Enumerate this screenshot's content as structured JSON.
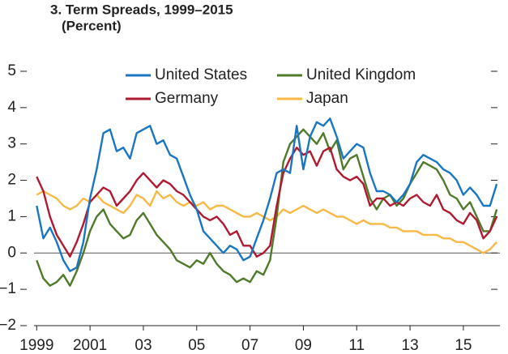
{
  "chart_data": {
    "type": "line",
    "title": "3. Term Spreads, 1999–2015",
    "subtitle": "(Percent)",
    "x": [
      1999,
      1999.25,
      1999.5,
      1999.75,
      2000,
      2000.25,
      2000.5,
      2000.75,
      2001,
      2001.25,
      2001.5,
      2001.75,
      2002,
      2002.25,
      2002.5,
      2002.75,
      2003,
      2003.25,
      2003.5,
      2003.75,
      2004,
      2004.25,
      2004.5,
      2004.75,
      2005,
      2005.25,
      2005.5,
      2005.75,
      2006,
      2006.25,
      2006.5,
      2006.75,
      2007,
      2007.25,
      2007.5,
      2007.75,
      2008,
      2008.25,
      2008.5,
      2008.75,
      2009,
      2009.25,
      2009.5,
      2009.75,
      2010,
      2010.25,
      2010.5,
      2010.75,
      2011,
      2011.25,
      2011.5,
      2011.75,
      2012,
      2012.25,
      2012.5,
      2012.75,
      2013,
      2013.25,
      2013.5,
      2013.75,
      2014,
      2014.25,
      2014.5,
      2014.75,
      2015,
      2015.25,
      2015.5,
      2015.75,
      2016,
      2016.25
    ],
    "series": [
      {
        "name": "United States",
        "color": "#1a75c2",
        "values": [
          1.3,
          0.4,
          0.7,
          0.3,
          -0.2,
          -0.5,
          -0.4,
          0.3,
          1.5,
          2.3,
          3.3,
          3.4,
          2.8,
          2.9,
          2.6,
          3.3,
          3.4,
          3.5,
          3.0,
          3.1,
          2.7,
          2.6,
          2.1,
          1.6,
          1.2,
          0.6,
          0.4,
          0.2,
          0.0,
          0.2,
          0.1,
          -0.2,
          -0.1,
          0.4,
          0.9,
          1.5,
          2.2,
          2.3,
          2.2,
          3.5,
          2.3,
          3.2,
          3.6,
          3.5,
          3.7,
          3.2,
          2.6,
          2.8,
          3.0,
          2.9,
          2.2,
          1.7,
          1.7,
          1.6,
          1.4,
          1.6,
          1.9,
          2.5,
          2.7,
          2.6,
          2.5,
          2.3,
          2.2,
          2.0,
          1.6,
          1.8,
          1.6,
          1.3,
          1.3,
          1.9
        ]
      },
      {
        "name": "United Kingdom",
        "color": "#4f7a2a",
        "values": [
          -0.2,
          -0.7,
          -0.9,
          -0.8,
          -0.6,
          -0.9,
          -0.5,
          0.0,
          0.6,
          1.0,
          1.2,
          0.8,
          0.6,
          0.4,
          0.5,
          0.9,
          1.1,
          0.8,
          0.5,
          0.3,
          0.1,
          -0.2,
          -0.3,
          -0.4,
          -0.2,
          -0.3,
          0.0,
          -0.3,
          -0.5,
          -0.6,
          -0.8,
          -0.7,
          -0.8,
          -0.5,
          -0.6,
          -0.2,
          1.0,
          2.5,
          3.0,
          3.2,
          3.4,
          3.2,
          3.0,
          3.3,
          2.8,
          3.1,
          2.3,
          2.6,
          2.7,
          2.1,
          1.5,
          1.2,
          1.5,
          1.6,
          1.3,
          1.5,
          1.9,
          2.2,
          2.5,
          2.4,
          2.3,
          2.0,
          1.6,
          1.5,
          1.2,
          1.4,
          1.0,
          0.6,
          0.6,
          1.2
        ]
      },
      {
        "name": "Germany",
        "color": "#b01a30",
        "values": [
          2.1,
          1.7,
          1.0,
          0.5,
          0.2,
          -0.1,
          0.3,
          0.8,
          1.4,
          1.6,
          1.8,
          1.7,
          1.3,
          1.5,
          1.7,
          2.0,
          2.2,
          2.0,
          1.8,
          2.0,
          1.9,
          1.7,
          1.6,
          1.4,
          1.2,
          1.0,
          0.9,
          1.0,
          0.8,
          0.5,
          0.6,
          0.2,
          0.2,
          -0.1,
          0.0,
          0.2,
          1.3,
          2.2,
          2.6,
          2.9,
          2.7,
          2.8,
          2.4,
          2.8,
          2.9,
          2.3,
          2.1,
          2.0,
          2.1,
          1.9,
          1.3,
          1.5,
          1.5,
          1.3,
          1.4,
          1.3,
          1.5,
          1.6,
          1.4,
          1.3,
          1.6,
          1.2,
          1.1,
          0.9,
          0.8,
          1.1,
          0.9,
          0.4,
          0.6,
          1.0
        ]
      },
      {
        "name": "Japan",
        "color": "#f7b844",
        "values": [
          1.6,
          1.7,
          1.6,
          1.5,
          1.3,
          1.2,
          1.3,
          1.5,
          1.4,
          1.6,
          1.4,
          1.3,
          1.2,
          1.1,
          1.3,
          1.6,
          1.5,
          1.3,
          1.7,
          1.5,
          1.6,
          1.4,
          1.3,
          1.4,
          1.3,
          1.4,
          1.2,
          1.3,
          1.3,
          1.2,
          1.1,
          1.0,
          1.0,
          1.1,
          1.0,
          0.9,
          1.0,
          1.2,
          1.1,
          1.2,
          1.3,
          1.2,
          1.1,
          1.2,
          1.1,
          1.0,
          1.0,
          0.9,
          0.8,
          0.9,
          0.8,
          0.8,
          0.8,
          0.7,
          0.7,
          0.6,
          0.6,
          0.6,
          0.5,
          0.5,
          0.5,
          0.4,
          0.4,
          0.3,
          0.3,
          0.2,
          0.1,
          0.0,
          0.1,
          0.3
        ]
      }
    ],
    "xlim": [
      1998.9,
      2016.37
    ],
    "xticks": [
      {
        "value": 1999,
        "label": "1999"
      },
      {
        "value": 2001,
        "label": "2001"
      },
      {
        "value": 2003,
        "label": "03"
      },
      {
        "value": 2005,
        "label": "05"
      },
      {
        "value": 2007,
        "label": "07"
      },
      {
        "value": 2009,
        "label": "09"
      },
      {
        "value": 2011,
        "label": "11"
      },
      {
        "value": 2013,
        "label": "13"
      },
      {
        "value": 2015,
        "label": "15"
      }
    ],
    "ylim": [
      -2,
      5
    ],
    "yticks": [
      {
        "value": -2,
        "label": "−2"
      },
      {
        "value": -1,
        "label": "−1"
      },
      0,
      1,
      2,
      3,
      4,
      5
    ]
  }
}
